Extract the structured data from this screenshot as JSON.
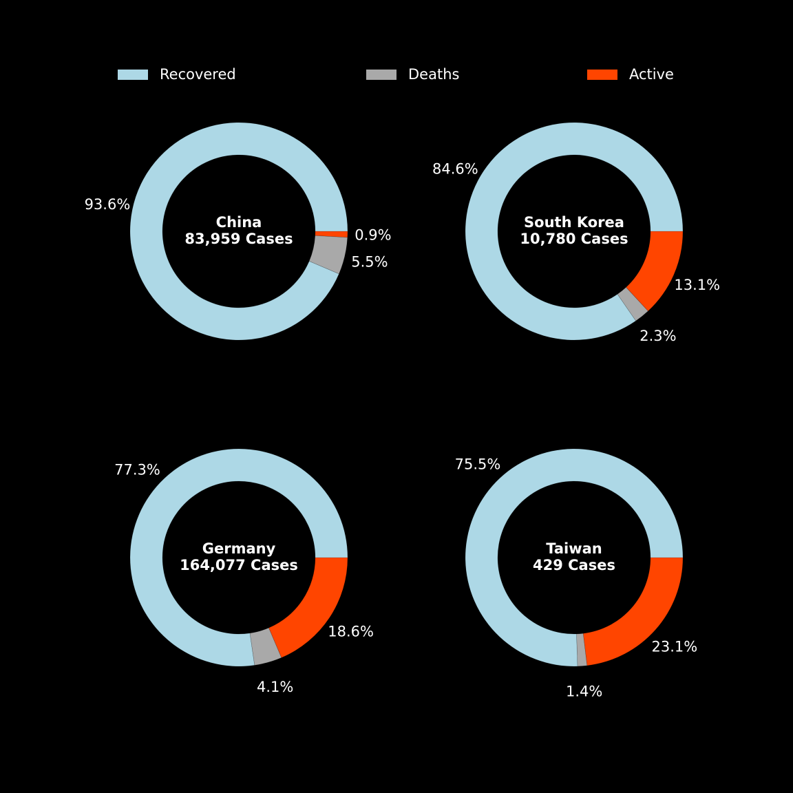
{
  "colors": {
    "background": "#000000",
    "recovered": "#add8e6",
    "deaths": "#a9a9a9",
    "active": "#ff4500",
    "text": "#ffffff"
  },
  "legend": {
    "recovered": "Recovered",
    "deaths": "Deaths",
    "active": "Active"
  },
  "chart_data": [
    {
      "type": "pie",
      "style": "donut",
      "country": "China",
      "cases_label": "83,959 Cases",
      "categories": [
        "Active",
        "Deaths",
        "Recovered"
      ],
      "values": [
        0.9,
        5.5,
        93.6
      ],
      "labels": [
        "0.9%",
        "5.5%",
        "93.6%"
      ]
    },
    {
      "type": "pie",
      "style": "donut",
      "country": "South Korea",
      "cases_label": "10,780 Cases",
      "categories": [
        "Active",
        "Deaths",
        "Recovered"
      ],
      "values": [
        13.1,
        2.3,
        84.6
      ],
      "labels": [
        "13.1%",
        "2.3%",
        "84.6%"
      ]
    },
    {
      "type": "pie",
      "style": "donut",
      "country": "Germany",
      "cases_label": "164,077 Cases",
      "categories": [
        "Active",
        "Deaths",
        "Recovered"
      ],
      "values": [
        18.6,
        4.1,
        77.3
      ],
      "labels": [
        "18.6%",
        "4.1%",
        "77.3%"
      ]
    },
    {
      "type": "pie",
      "style": "donut",
      "country": "Taiwan",
      "cases_label": "429 Cases",
      "categories": [
        "Active",
        "Deaths",
        "Recovered"
      ],
      "values": [
        23.1,
        1.4,
        75.5
      ],
      "labels": [
        "23.1%",
        "1.4%",
        "75.5%"
      ]
    }
  ]
}
